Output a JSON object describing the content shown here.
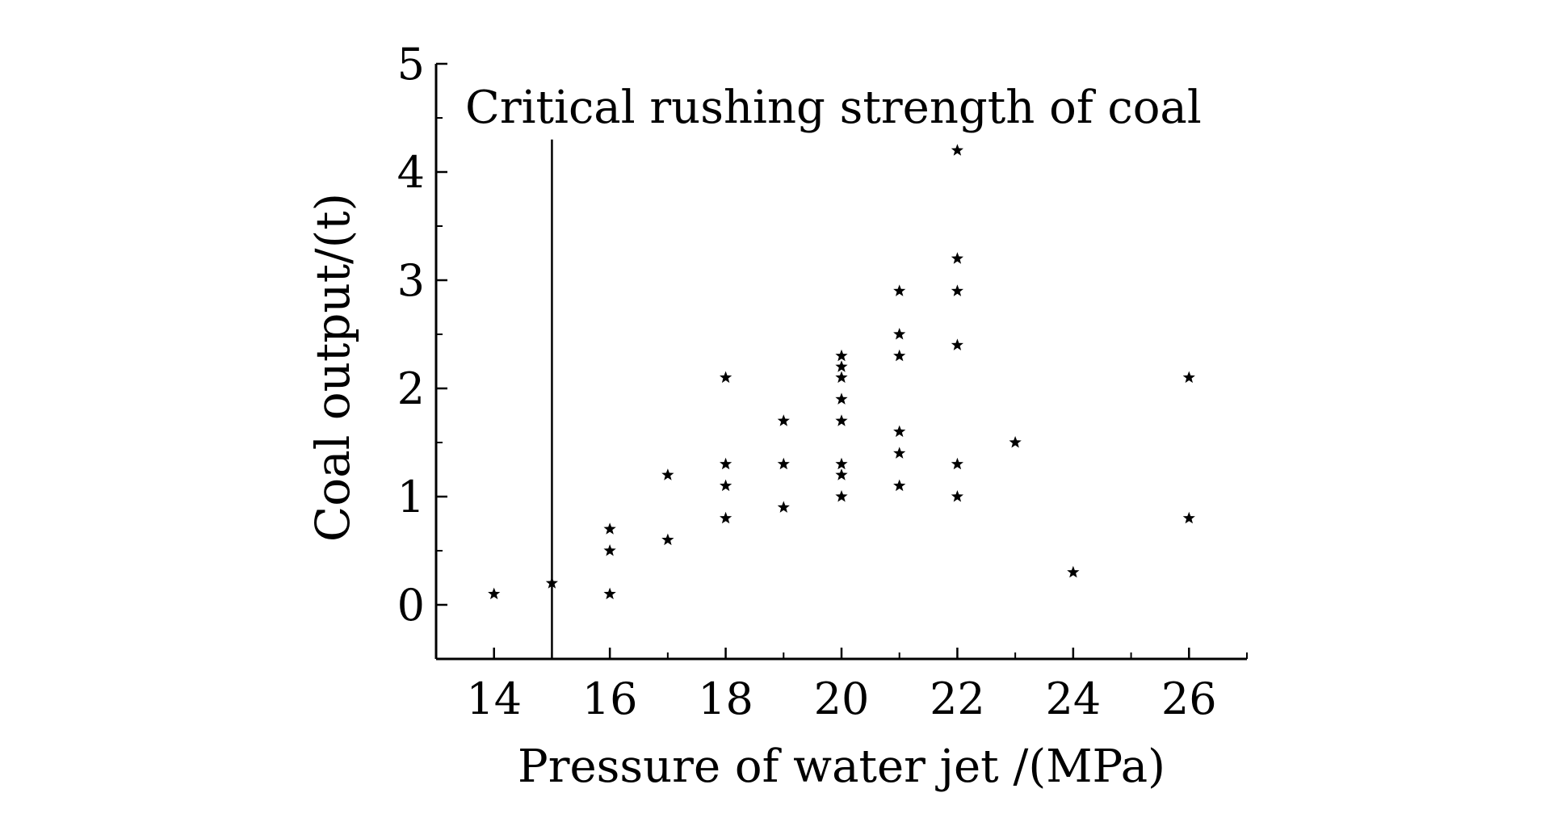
{
  "chart_data": {
    "type": "scatter",
    "title": "",
    "annotation": "Critical rushing strength of coal",
    "annotation_line_x": 15,
    "annotation_line_top": 4.3,
    "xlabel": "Pressure of water jet /(MPa)",
    "ylabel": "Coal output/(t)",
    "xlim": [
      13,
      27
    ],
    "ylim": [
      -0.5,
      5
    ],
    "xticks": [
      14,
      16,
      18,
      20,
      22,
      24,
      26
    ],
    "xminor": [
      13,
      15,
      17,
      19,
      21,
      23,
      25,
      27
    ],
    "yticks": [
      0,
      1,
      2,
      3,
      4,
      5
    ],
    "yminor": [
      -0.5,
      0.5,
      1.5,
      2.5,
      3.5,
      4.5
    ],
    "grid": false,
    "marker": "star",
    "color": "#000000",
    "points": [
      [
        14,
        0.1
      ],
      [
        15,
        0.2
      ],
      [
        16,
        0.7
      ],
      [
        16,
        0.5
      ],
      [
        16,
        0.1
      ],
      [
        17,
        1.2
      ],
      [
        17,
        0.6
      ],
      [
        18,
        2.1
      ],
      [
        18,
        1.3
      ],
      [
        18,
        1.1
      ],
      [
        18,
        0.8
      ],
      [
        19,
        1.7
      ],
      [
        19,
        1.3
      ],
      [
        19,
        0.9
      ],
      [
        20,
        2.3
      ],
      [
        20,
        2.2
      ],
      [
        20,
        2.1
      ],
      [
        20,
        1.9
      ],
      [
        20,
        1.7
      ],
      [
        20,
        1.3
      ],
      [
        20,
        1.2
      ],
      [
        20,
        1.0
      ],
      [
        21,
        2.9
      ],
      [
        21,
        2.5
      ],
      [
        21,
        2.3
      ],
      [
        21,
        1.6
      ],
      [
        21,
        1.4
      ],
      [
        21,
        1.1
      ],
      [
        22,
        4.2
      ],
      [
        22,
        3.2
      ],
      [
        22,
        2.9
      ],
      [
        22,
        2.4
      ],
      [
        22,
        1.3
      ],
      [
        22,
        1.0
      ],
      [
        23,
        1.5
      ],
      [
        24,
        0.3
      ],
      [
        26,
        2.1
      ],
      [
        26,
        0.8
      ]
    ]
  }
}
